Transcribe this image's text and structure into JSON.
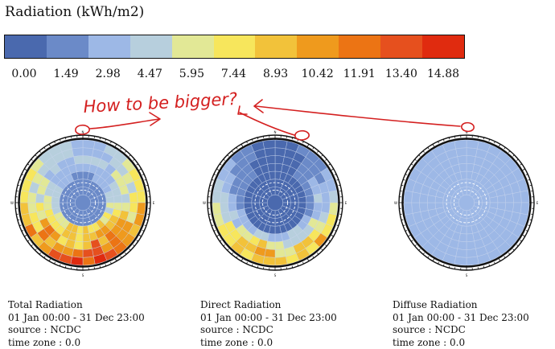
{
  "legend": {
    "title": "Radiation (kWh/m2)",
    "ticks": [
      "0.00",
      "1.49",
      "2.98",
      "4.47",
      "5.95",
      "7.44",
      "8.93",
      "10.42",
      "11.91",
      "13.40",
      "14.88"
    ],
    "colors": [
      "#4a69ae",
      "#6b8ac8",
      "#9db8e6",
      "#b7cfdd",
      "#e2e896",
      "#f7e65c",
      "#f2c23a",
      "#ef9a1d",
      "#ec7414",
      "#e6501e",
      "#e02b0f"
    ]
  },
  "annotation": {
    "text": "How to be bigger?",
    "color": "#d42020"
  },
  "chart_data": [
    {
      "type": "heatmap",
      "subtype": "sky-dome",
      "title": "Total Radiation",
      "caption": [
        "Total Radiation",
        "01 Jan 00:00 - 31 Dec 23:00",
        "source : NCDC",
        "time zone : 0.0"
      ],
      "compass": [
        "N",
        "E",
        "S",
        "W"
      ],
      "profile": "total"
    },
    {
      "type": "heatmap",
      "subtype": "sky-dome",
      "title": "Direct Radiation",
      "caption": [
        "Direct Radiation",
        "01 Jan 00:00 - 31 Dec 23:00",
        "source : NCDC",
        "time zone : 0.0"
      ],
      "compass": [
        "N",
        "E",
        "S",
        "W"
      ],
      "profile": "direct"
    },
    {
      "type": "heatmap",
      "subtype": "sky-dome",
      "title": "Diffuse Radiation",
      "caption": [
        "Diffuse Radiation",
        "01 Jan 00:00 - 31 Dec 23:00",
        "source : NCDC",
        "time zone : 0.0"
      ],
      "compass": [
        "N",
        "E",
        "S",
        "W"
      ],
      "profile": "diffuse"
    }
  ]
}
